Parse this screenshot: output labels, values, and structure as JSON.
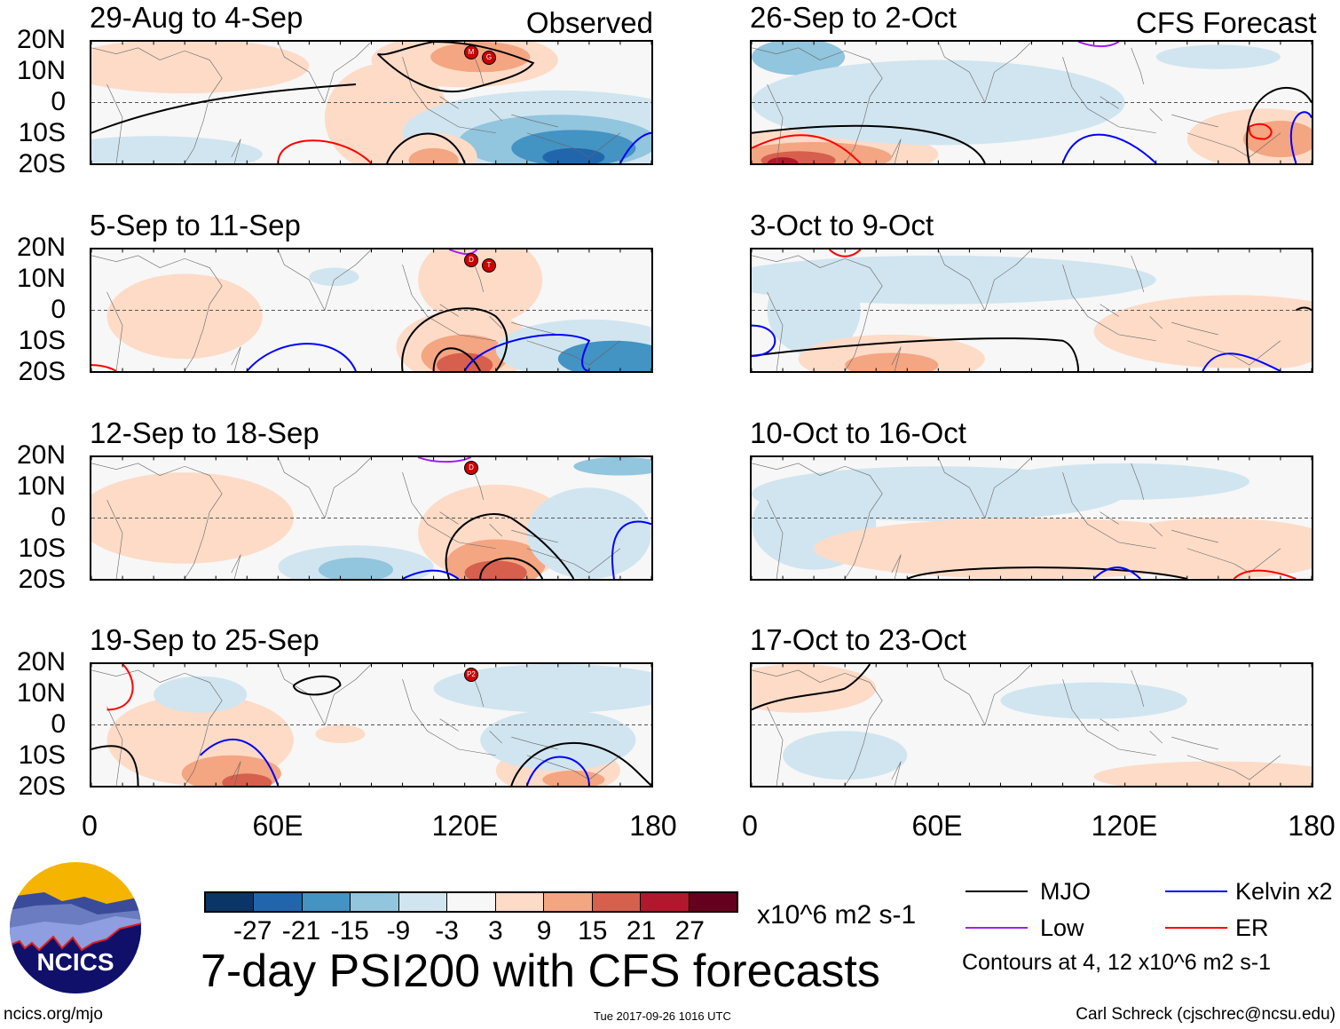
{
  "panels_left": [
    {
      "title": "29-Aug to 4-Sep",
      "tag": "Observed",
      "storms": [
        "M",
        "G"
      ]
    },
    {
      "title": "5-Sep to 11-Sep",
      "storms": [
        "D",
        "T"
      ]
    },
    {
      "title": "12-Sep to 18-Sep",
      "storms": [
        "D"
      ]
    },
    {
      "title": "19-Sep to 25-Sep",
      "storms": [
        "P2"
      ]
    }
  ],
  "panels_right": [
    {
      "title": "26-Sep to 2-Oct",
      "tag": "CFS Forecast"
    },
    {
      "title": "3-Oct to 9-Oct"
    },
    {
      "title": "10-Oct to 16-Oct"
    },
    {
      "title": "17-Oct to 23-Oct"
    }
  ],
  "lat_labels": [
    "20N",
    "10N",
    "0",
    "10S",
    "20S"
  ],
  "lon_labels": [
    "0",
    "60E",
    "120E",
    "180"
  ],
  "colorbar": {
    "colors": [
      "#0b3565",
      "#2166ac",
      "#4393c3",
      "#92c5de",
      "#d1e5f0",
      "#f7f7f7",
      "#fddbc7",
      "#f4a582",
      "#d6604d",
      "#b2182b",
      "#67001f"
    ],
    "labels": [
      "-27",
      "-21",
      "-15",
      "-9",
      "-3",
      "3",
      "9",
      "15",
      "21",
      "27"
    ],
    "units": "x10^6 m2 s-1"
  },
  "title": "7-day PSI200 with CFS forecasts",
  "legend": [
    {
      "label": "MJO",
      "color": "#000000"
    },
    {
      "label": "Low",
      "color": "#a020f0"
    },
    {
      "label": "Kelvin x2",
      "color": "#0000ff"
    },
    {
      "label": "ER",
      "color": "#ff0000"
    }
  ],
  "contour_note": "Contours at 4, 12 x10^6 m2 s-1",
  "logo_text": "NCICS",
  "url": "ncics.org/mjo",
  "timestamp": "Tue 2017-09-26 1016 UTC",
  "author": "Carl Schreck (cjschrec@ncsu.edu)"
}
